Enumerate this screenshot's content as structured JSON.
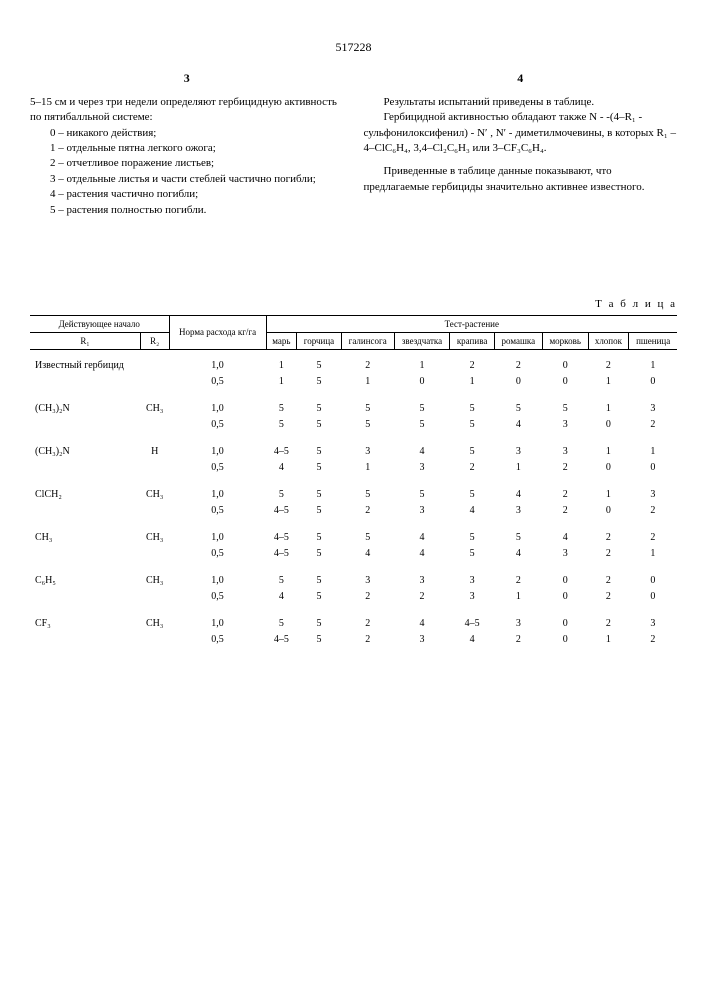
{
  "docNumber": "517228",
  "colLeft": {
    "num": "3",
    "intro": "5–15 см и через три недели определяют гербицидную активность по пятибалльной системе:",
    "items": [
      "0 – никакого действия;",
      "1 – отдельные пятна легкого ожога;",
      "2 – отчетливое поражение листьев;",
      "3 – отдельные листья и части стеблей частично погибли;",
      "4 – растения частично погибли;",
      "5 – растения полностью погибли."
    ]
  },
  "colRight": {
    "num": "4",
    "p1": "Результаты испытаний приведены в таблице.",
    "p2": "Гербицидной активностью обладают также N - -(4–R₁ - сульфонилоксифенил) - N′ , N′ - диметилмочевины, в которых R₁ – 4–ClC₆H₄, 3,4–Cl₂C₆H₃ или 3–CF₃C₆H₄.",
    "p3": "Приведенные в таблице данные показывают, что предлагаемые гербициды значительно активнее известного."
  },
  "tableLabel": "Т а б л и ц а",
  "headers": {
    "main": "Действующее начало",
    "r1": "R₁",
    "r2": "R₂",
    "norm": "Норма расхода кг/га",
    "test": "Тест-растение",
    "plants": [
      "марь",
      "горчица",
      "галинсога",
      "звездчатка",
      "крапива",
      "ромашка",
      "морковь",
      "хлопок",
      "пшеница"
    ]
  },
  "rows": [
    {
      "r1": "Известный гербицид",
      "r2": "",
      "n": "1,0",
      "v": [
        "1",
        "5",
        "2",
        "1",
        "2",
        "2",
        "0",
        "2",
        "1"
      ]
    },
    {
      "r1": "",
      "r2": "",
      "n": "0,5",
      "v": [
        "1",
        "5",
        "1",
        "0",
        "1",
        "0",
        "0",
        "1",
        "0"
      ]
    },
    {
      "r1": "(CH₃)₂N",
      "r2": "CH₃",
      "n": "1,0",
      "v": [
        "5",
        "5",
        "5",
        "5",
        "5",
        "5",
        "5",
        "1",
        "3"
      ]
    },
    {
      "r1": "",
      "r2": "",
      "n": "0,5",
      "v": [
        "5",
        "5",
        "5",
        "5",
        "5",
        "4",
        "3",
        "0",
        "2"
      ]
    },
    {
      "r1": "(CH₃)₂N",
      "r2": "H",
      "n": "1,0",
      "v": [
        "4–5",
        "5",
        "3",
        "4",
        "5",
        "3",
        "3",
        "1",
        "1"
      ]
    },
    {
      "r1": "",
      "r2": "",
      "n": "0,5",
      "v": [
        "4",
        "5",
        "1",
        "3",
        "2",
        "1",
        "2",
        "0",
        "0"
      ]
    },
    {
      "r1": "ClCH₂",
      "r2": "CH₃",
      "n": "1,0",
      "v": [
        "5",
        "5",
        "5",
        "5",
        "5",
        "4",
        "2",
        "1",
        "3"
      ]
    },
    {
      "r1": "",
      "r2": "",
      "n": "0,5",
      "v": [
        "4–5",
        "5",
        "2",
        "3",
        "4",
        "3",
        "2",
        "0",
        "2"
      ]
    },
    {
      "r1": "CH₃",
      "r2": "CH₃",
      "n": "1,0",
      "v": [
        "4–5",
        "5",
        "5",
        "4",
        "5",
        "5",
        "4",
        "2",
        "2"
      ]
    },
    {
      "r1": "",
      "r2": "",
      "n": "0,5",
      "v": [
        "4–5",
        "5",
        "4",
        "4",
        "5",
        "4",
        "3",
        "2",
        "1"
      ]
    },
    {
      "r1": "C₆H₅",
      "r2": "CH₃",
      "n": "1,0",
      "v": [
        "5",
        "5",
        "3",
        "3",
        "3",
        "2",
        "0",
        "2",
        "0"
      ]
    },
    {
      "r1": "",
      "r2": "",
      "n": "0,5",
      "v": [
        "4",
        "5",
        "2",
        "2",
        "3",
        "1",
        "0",
        "2",
        "0"
      ]
    },
    {
      "r1": "CF₃",
      "r2": "CH₃",
      "n": "1,0",
      "v": [
        "5",
        "5",
        "2",
        "4",
        "4–5",
        "3",
        "0",
        "2",
        "3"
      ]
    },
    {
      "r1": "",
      "r2": "",
      "n": "0,5",
      "v": [
        "4–5",
        "5",
        "2",
        "3",
        "4",
        "2",
        "0",
        "1",
        "2"
      ]
    }
  ]
}
